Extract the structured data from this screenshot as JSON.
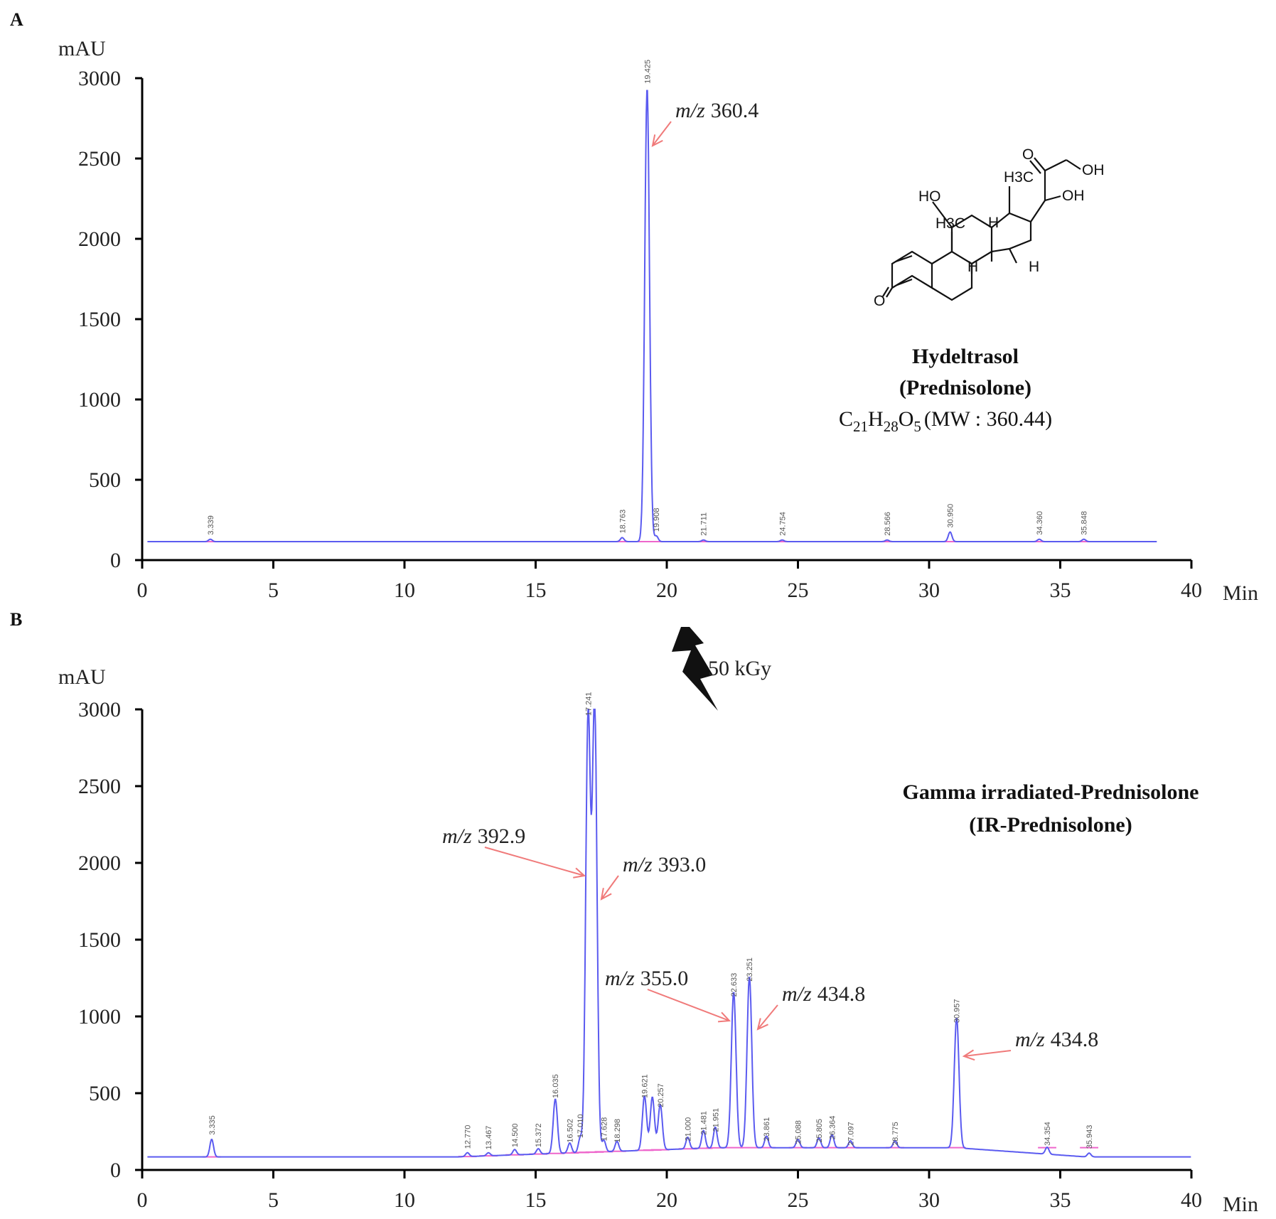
{
  "chart_data": [
    {
      "panel": "A",
      "type": "line",
      "ylabel": "mAU",
      "xlabel": "Min",
      "xlim": [
        0,
        40
      ],
      "ylim": [
        0,
        3000
      ],
      "x_ticks": [
        "0",
        "5",
        "10",
        "15",
        "20",
        "25",
        "30",
        "35",
        "40"
      ],
      "y_ticks": [
        "0",
        "500",
        "1000",
        "1500",
        "2000",
        "2500",
        "3000"
      ],
      "baseline": 115,
      "end_time": 38.7,
      "peaks": [
        {
          "rt": 2.6,
          "height": 130,
          "label": "3.339"
        },
        {
          "rt": 18.3,
          "height": 140,
          "label": "18.763"
        },
        {
          "rt": 19.25,
          "height": 2940,
          "label": "19.425"
        },
        {
          "rt": 19.6,
          "height": 150,
          "label": "19.908"
        },
        {
          "rt": 21.4,
          "height": 125,
          "label": "21.711"
        },
        {
          "rt": 24.4,
          "height": 125,
          "label": "24.754"
        },
        {
          "rt": 28.4,
          "height": 125,
          "label": "28.566"
        },
        {
          "rt": 30.8,
          "height": 175,
          "label": "30.950"
        },
        {
          "rt": 34.2,
          "height": 130,
          "label": "34.360"
        },
        {
          "rt": 35.9,
          "height": 130,
          "label": "35.848"
        }
      ],
      "annotations": [
        {
          "prefix": "m/z",
          "value": "360.4",
          "rt": 19.3,
          "y": 2600
        }
      ]
    },
    {
      "panel": "B",
      "type": "line",
      "ylabel": "mAU",
      "xlabel": "Min",
      "xlim": [
        0,
        40
      ],
      "ylim": [
        0,
        3000
      ],
      "x_ticks": [
        "0",
        "5",
        "10",
        "15",
        "20",
        "25",
        "30",
        "35",
        "40"
      ],
      "y_ticks": [
        "0",
        "500",
        "1000",
        "1500",
        "2000",
        "2500",
        "3000"
      ],
      "baseline": 85,
      "end_time": 40,
      "peaks": [
        {
          "rt": 2.65,
          "height": 200,
          "label": "3.335"
        },
        {
          "rt": 12.4,
          "height": 110,
          "label": "12.770"
        },
        {
          "rt": 13.2,
          "height": 105,
          "label": "13.467"
        },
        {
          "rt": 14.2,
          "height": 120,
          "label": "14.500"
        },
        {
          "rt": 15.1,
          "height": 120,
          "label": "15.372"
        },
        {
          "rt": 15.75,
          "height": 440,
          "label": "16.035"
        },
        {
          "rt": 16.3,
          "height": 150,
          "label": "16.502"
        },
        {
          "rt": 16.7,
          "height": 180,
          "label": "17.010"
        },
        {
          "rt": 17.0,
          "height": 2930,
          "label": "17.241"
        },
        {
          "rt": 17.25,
          "height": 3000,
          "label": ""
        },
        {
          "rt": 17.6,
          "height": 160,
          "label": "17.628"
        },
        {
          "rt": 18.1,
          "height": 150,
          "label": "18.298"
        },
        {
          "rt": 19.15,
          "height": 440,
          "label": "19.621"
        },
        {
          "rt": 19.45,
          "height": 430,
          "label": ""
        },
        {
          "rt": 19.75,
          "height": 380,
          "label": "20.257"
        },
        {
          "rt": 20.8,
          "height": 160,
          "label": "21.000"
        },
        {
          "rt": 21.4,
          "height": 200,
          "label": "21.481"
        },
        {
          "rt": 21.85,
          "height": 220,
          "label": "21.951"
        },
        {
          "rt": 22.55,
          "height": 1100,
          "label": "22.633"
        },
        {
          "rt": 23.15,
          "height": 1200,
          "label": "23.251"
        },
        {
          "rt": 23.8,
          "height": 160,
          "label": "23.861"
        },
        {
          "rt": 25.0,
          "height": 140,
          "label": "25.088"
        },
        {
          "rt": 25.8,
          "height": 150,
          "label": "25.805"
        },
        {
          "rt": 26.3,
          "height": 170,
          "label": "26.364"
        },
        {
          "rt": 27.0,
          "height": 130,
          "label": "27.097"
        },
        {
          "rt": 28.7,
          "height": 130,
          "label": "28.775"
        },
        {
          "rt": 31.05,
          "height": 930,
          "label": "30.957"
        },
        {
          "rt": 34.5,
          "height": 130,
          "label": "34.354"
        },
        {
          "rt": 36.1,
          "height": 110,
          "label": "35.943"
        }
      ],
      "annotations": [
        {
          "prefix": "m/z",
          "value": "392.9",
          "rt": 17.0,
          "y": 1950
        },
        {
          "prefix": "m/z",
          "value": "393.0",
          "rt": 17.3,
          "y": 1780
        },
        {
          "prefix": "m/z",
          "value": "355.0",
          "rt": 22.5,
          "y": 980
        },
        {
          "prefix": "m/z",
          "value": "434.8",
          "rt": 23.3,
          "y": 980
        },
        {
          "prefix": "m/z",
          "value": "434.8",
          "rt": 31.2,
          "y": 800
        }
      ]
    }
  ],
  "panel_a": {
    "letter": "A",
    "compound_name": "Hydeltrasol",
    "compound_alt": "(Prednisolone)",
    "formula": {
      "c": "C",
      "c_n": "21",
      "h": "H",
      "h_n": "28",
      "o": "O",
      "o_n": "5",
      "mw": "(MW : 360.44)"
    }
  },
  "panel_b": {
    "letter": "B",
    "sample_name": "Gamma  irradiated-Prednisolone",
    "sample_alt": "(IR-Prednisolone)"
  },
  "irradiation": {
    "dose": "50 kGy"
  },
  "structure_atoms": {
    "o_ketone_side": "O",
    "oh_primary": "OH",
    "h3c_c18": "H3C",
    "oh_17": "OH",
    "ho_11": "HO",
    "h3c_c19": "H3C",
    "h_a": "H",
    "h_b": "H",
    "h_c": "H",
    "o_3": "O"
  },
  "colors": {
    "trace": "#5b5bf0",
    "baseline_fit": "#ee66cc",
    "arrow": "#f07a7a"
  }
}
